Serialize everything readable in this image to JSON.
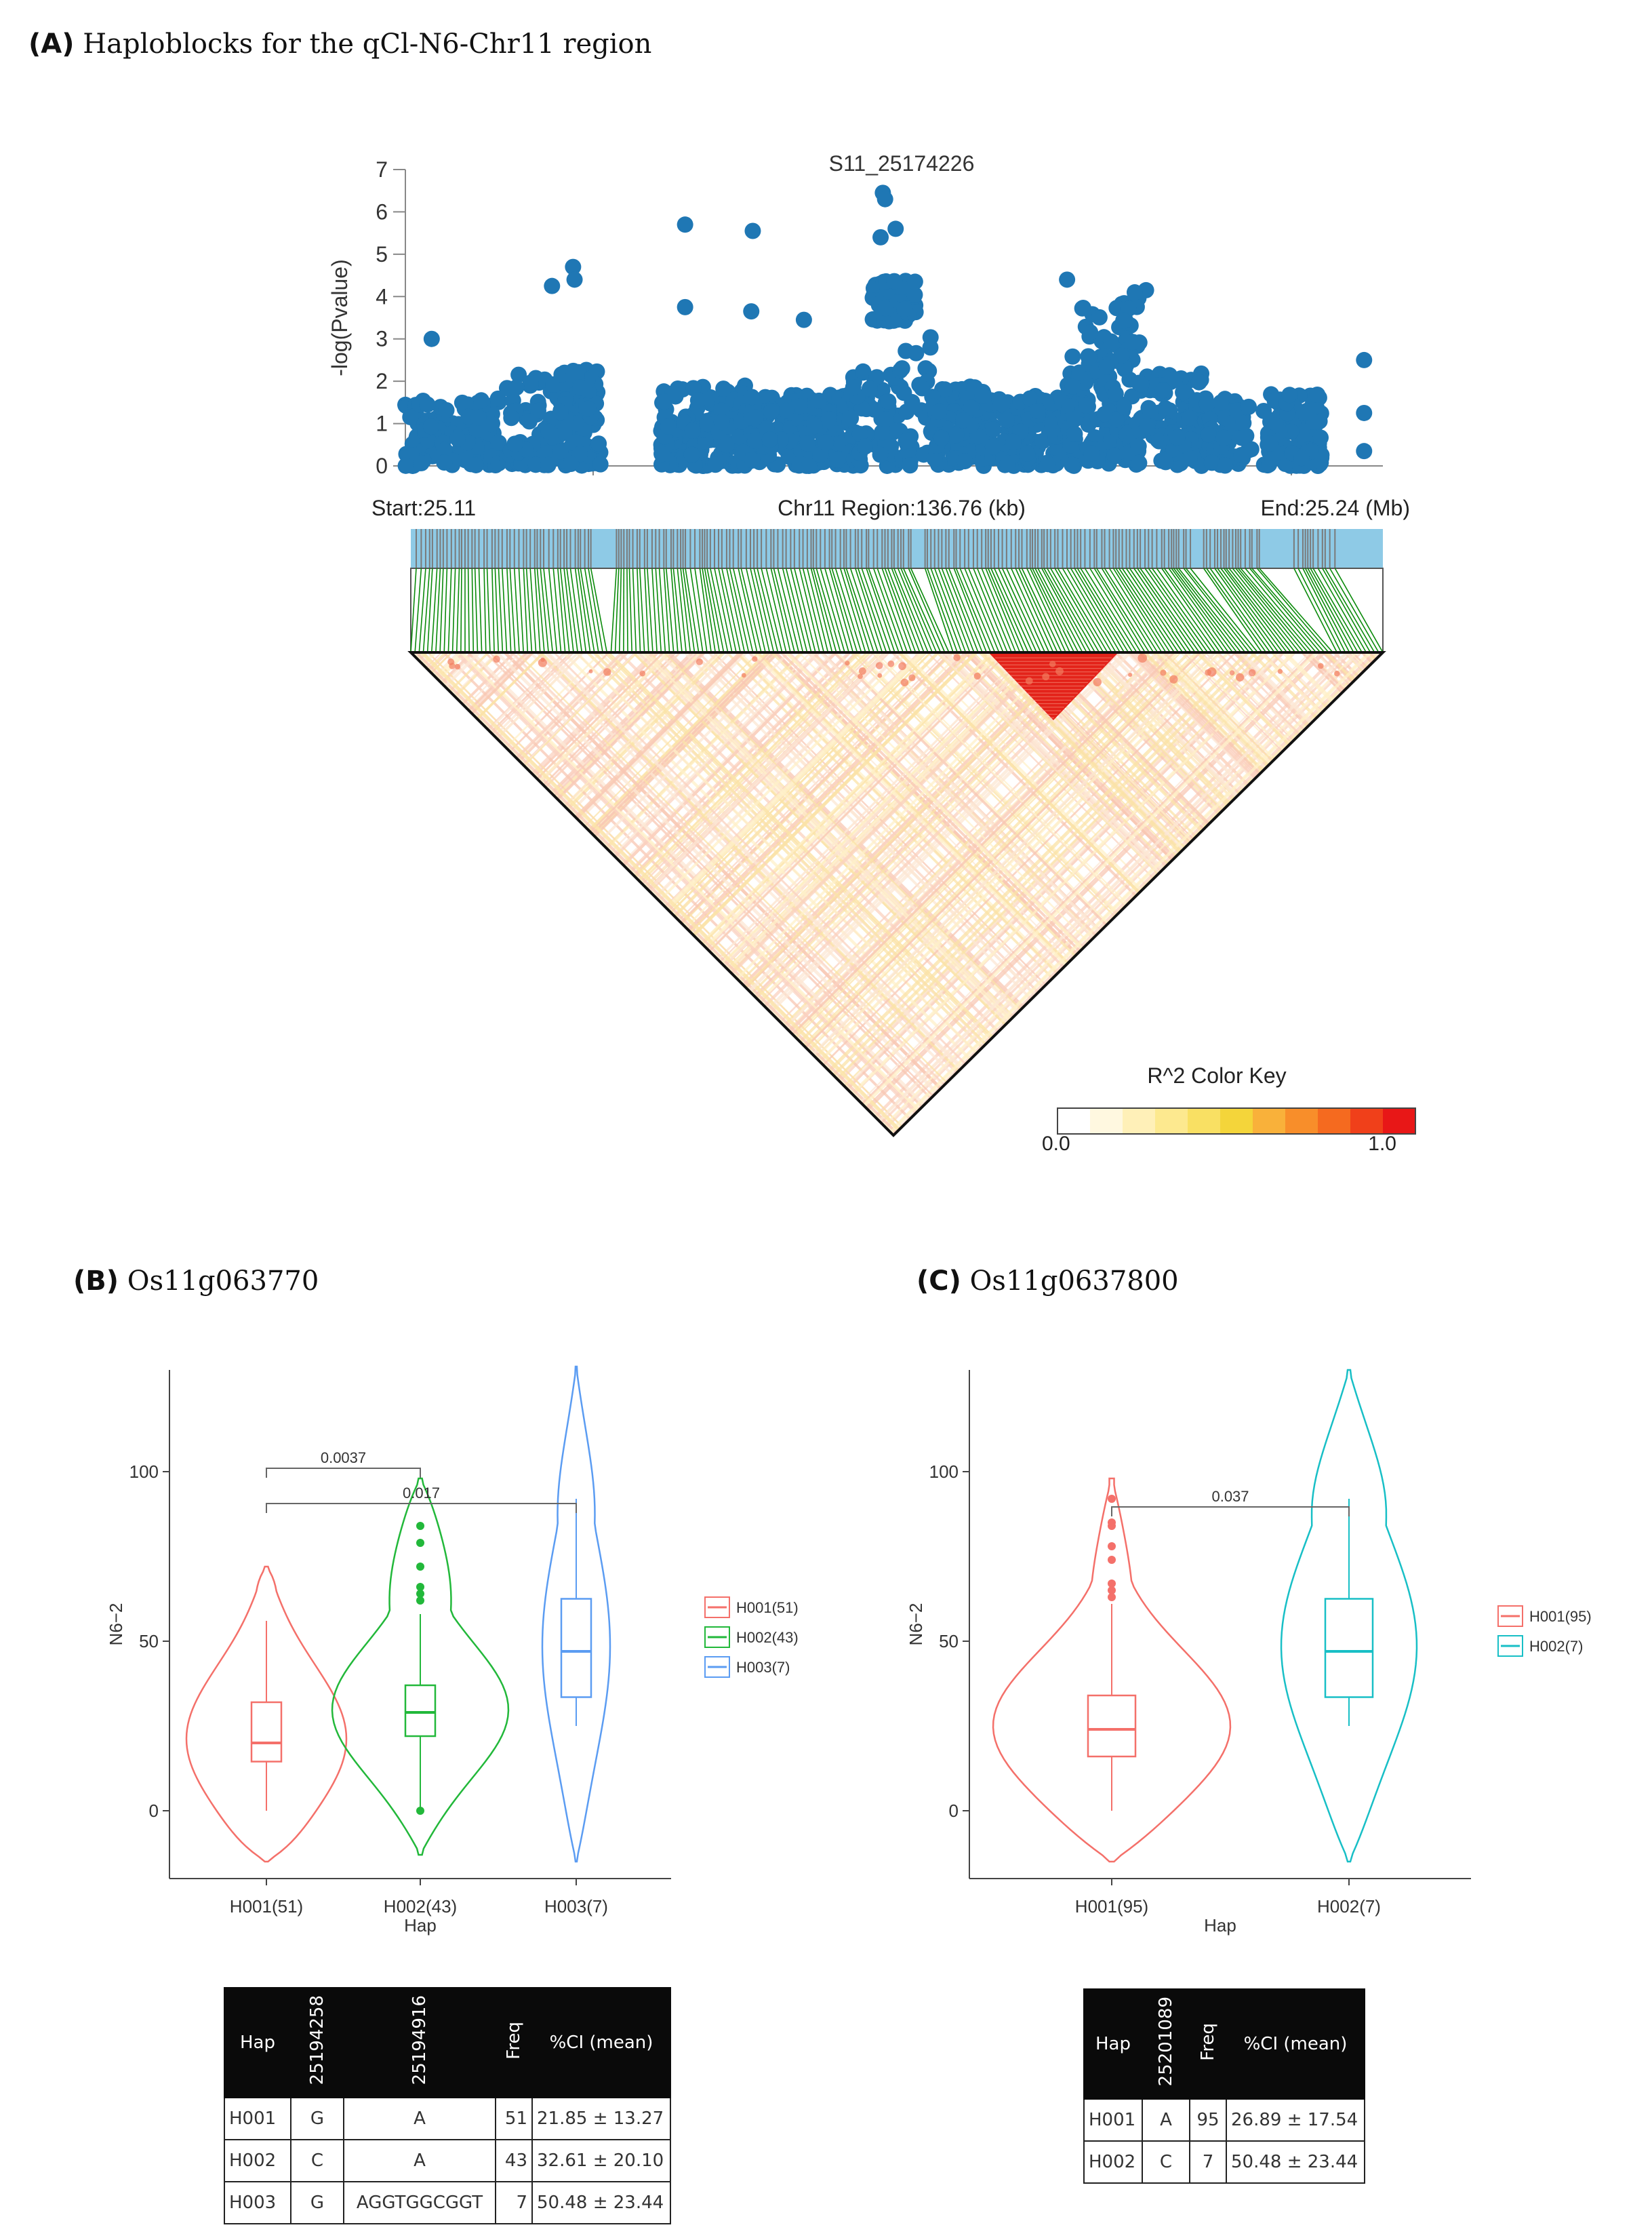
{
  "panels": {
    "a_label": "(A)",
    "a_title": "Haploblocks for the qCl-N6-Chr11 region",
    "b_label": "(B)",
    "b_title": "Os11g063770",
    "c_label": "(C)",
    "c_title": "Os11g0637800"
  },
  "colors": {
    "point": "#1f77b4",
    "gene_bar": "#8ecae6",
    "snp_tick": "#7a7a7a",
    "ld_link": "#0a8a0a",
    "h001": "#f4706a",
    "h002_b": "#22b83a",
    "h003": "#5b9cf2",
    "h002_c": "#18bfc6"
  },
  "chart_data": [
    {
      "type": "scatter",
      "title": "S11_25174226",
      "ylabel": "-log(Pvalue)",
      "ylim": [
        0,
        7
      ],
      "yticks": [
        0,
        1,
        2,
        3,
        4,
        5,
        6,
        7
      ],
      "x_unit": "Mb",
      "xlim": [
        25.11,
        25.24
      ],
      "region": {
        "start_label": "Start:25.11",
        "mid_label": "Chr11 Region:136.76 (kb)",
        "end_label": "End:25.24 (Mb)"
      },
      "highlight_points": [
        {
          "x": 25.1735,
          "y": 6.45
        },
        {
          "x": 25.1738,
          "y": 6.3
        },
        {
          "x": 25.1752,
          "y": 5.6
        },
        {
          "x": 25.1732,
          "y": 5.4
        },
        {
          "x": 25.1472,
          "y": 5.7
        },
        {
          "x": 25.1562,
          "y": 5.55
        },
        {
          "x": 25.1323,
          "y": 4.7
        },
        {
          "x": 25.1325,
          "y": 4.4
        },
        {
          "x": 25.1295,
          "y": 4.25
        },
        {
          "x": 25.198,
          "y": 4.4
        },
        {
          "x": 25.2085,
          "y": 4.15
        },
        {
          "x": 25.207,
          "y": 4.1
        },
        {
          "x": 25.1472,
          "y": 3.75
        },
        {
          "x": 25.156,
          "y": 3.65
        },
        {
          "x": 25.163,
          "y": 3.45
        },
        {
          "x": 25.1135,
          "y": 3.0
        },
        {
          "x": 25.2375,
          "y": 2.5
        },
        {
          "x": 25.2375,
          "y": 1.25
        },
        {
          "x": 25.2375,
          "y": 0.35
        }
      ],
      "ld_key": {
        "title": "R^2 Color Key",
        "min_label": "0.0",
        "max_label": "1.0",
        "colors": [
          "#ffffff",
          "#fff8e0",
          "#fff0b8",
          "#fde98f",
          "#f9e063",
          "#f4d53a",
          "#f9b13a",
          "#f88e2a",
          "#f56a1f",
          "#f0401a",
          "#e81717"
        ]
      }
    },
    {
      "type": "violin",
      "panel": "B",
      "xlabel": "Hap",
      "ylabel": "N6−2",
      "ylim": [
        -20,
        130
      ],
      "yticks": [
        0,
        50,
        100
      ],
      "categories": [
        "H001(51)",
        "H002(43)",
        "H003(7)"
      ],
      "legend": [
        "H001(51)",
        "H002(43)",
        "H003(7)"
      ],
      "box": [
        {
          "min": 0,
          "q1": 14.5,
          "median": 20,
          "q3": 32,
          "max": 56,
          "outliers": []
        },
        {
          "min": 0,
          "q1": 22,
          "median": 29,
          "q3": 37,
          "max": 58,
          "outliers": [
            0,
            62,
            64,
            66,
            72,
            79,
            84
          ]
        },
        {
          "min": 25,
          "q1": 33.5,
          "median": 47,
          "q3": 62.5,
          "max": 92,
          "outliers": []
        }
      ],
      "violin_range": [
        [
          -15,
          72
        ],
        [
          -13,
          98
        ],
        [
          -15,
          131
        ]
      ],
      "comparisons": [
        {
          "from": "H001(51)",
          "to": "H002(43)",
          "p": "0.0037"
        },
        {
          "from": "H001(51)",
          "to": "H003(7)",
          "p": "0.017"
        }
      ]
    },
    {
      "type": "violin",
      "panel": "C",
      "xlabel": "Hap",
      "ylabel": "N6−2",
      "ylim": [
        -20,
        130
      ],
      "yticks": [
        0,
        50,
        100
      ],
      "categories": [
        "H001(95)",
        "H002(7)"
      ],
      "legend": [
        "H001(95)",
        "H002(7)"
      ],
      "box": [
        {
          "min": 0,
          "q1": 16,
          "median": 24,
          "q3": 34,
          "max": 61,
          "outliers": [
            63,
            65,
            67,
            74,
            78,
            84,
            85,
            92
          ]
        },
        {
          "min": 25,
          "q1": 33.5,
          "median": 47,
          "q3": 62.5,
          "max": 92,
          "outliers": []
        }
      ],
      "violin_range": [
        [
          -15,
          98
        ],
        [
          -15,
          130
        ]
      ],
      "comparisons": [
        {
          "from": "H001(95)",
          "to": "H002(7)",
          "p": "0.037"
        }
      ]
    }
  ],
  "table_b": {
    "headers": [
      "Hap",
      "25194258",
      "25194916",
      "Freq",
      "%CI (mean)"
    ],
    "rows": [
      [
        "H001",
        "G",
        "A",
        "51",
        "21.85 ± 13.27"
      ],
      [
        "H002",
        "C",
        "A",
        "43",
        "32.61 ± 20.10"
      ],
      [
        "H003",
        "G",
        "AGGTGGCGGT",
        "7",
        "50.48 ± 23.44"
      ]
    ]
  },
  "table_c": {
    "headers": [
      "Hap",
      "25201089",
      "Freq",
      "%CI (mean)"
    ],
    "rows": [
      [
        "H001",
        "A",
        "95",
        "26.89 ± 17.54"
      ],
      [
        "H002",
        "C",
        "7",
        "50.48 ± 23.44"
      ]
    ]
  }
}
